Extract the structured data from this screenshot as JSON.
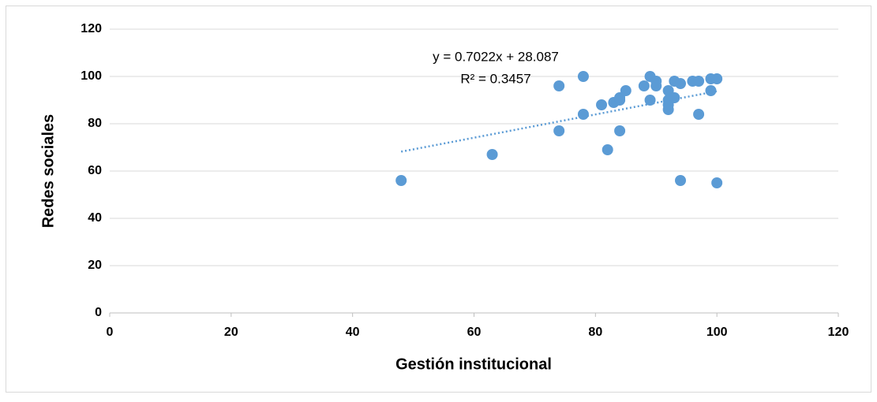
{
  "chart_data": {
    "type": "scatter",
    "x_label": "Gestión institucional",
    "y_label": "Redes sociales",
    "trendline_equation": "y = 0.7022x + 28.087",
    "trendline_r2": "R² = 0.3457",
    "color": "#5b9bd5",
    "trendline": true,
    "grid": true,
    "xlim": [
      0,
      120
    ],
    "xticks": [
      0,
      20,
      40,
      60,
      80,
      100,
      120
    ],
    "ylim": [
      0,
      120
    ],
    "yticks": [
      0,
      20,
      40,
      60,
      80,
      100,
      120
    ],
    "x": [
      48,
      63,
      74,
      74,
      78,
      78,
      81,
      82,
      83,
      84,
      84,
      84,
      85,
      88,
      89,
      89,
      90,
      90,
      92,
      92,
      92,
      92,
      93,
      93,
      94,
      94,
      96,
      97,
      97,
      99,
      99,
      100,
      100
    ],
    "values": [
      56,
      67,
      96,
      77,
      100,
      84,
      88,
      69,
      89,
      90,
      91,
      77,
      94,
      96,
      100,
      90,
      98,
      96,
      94,
      90,
      88,
      86,
      98,
      91,
      97,
      56,
      98,
      98,
      84,
      94,
      99,
      99,
      55
    ]
  }
}
